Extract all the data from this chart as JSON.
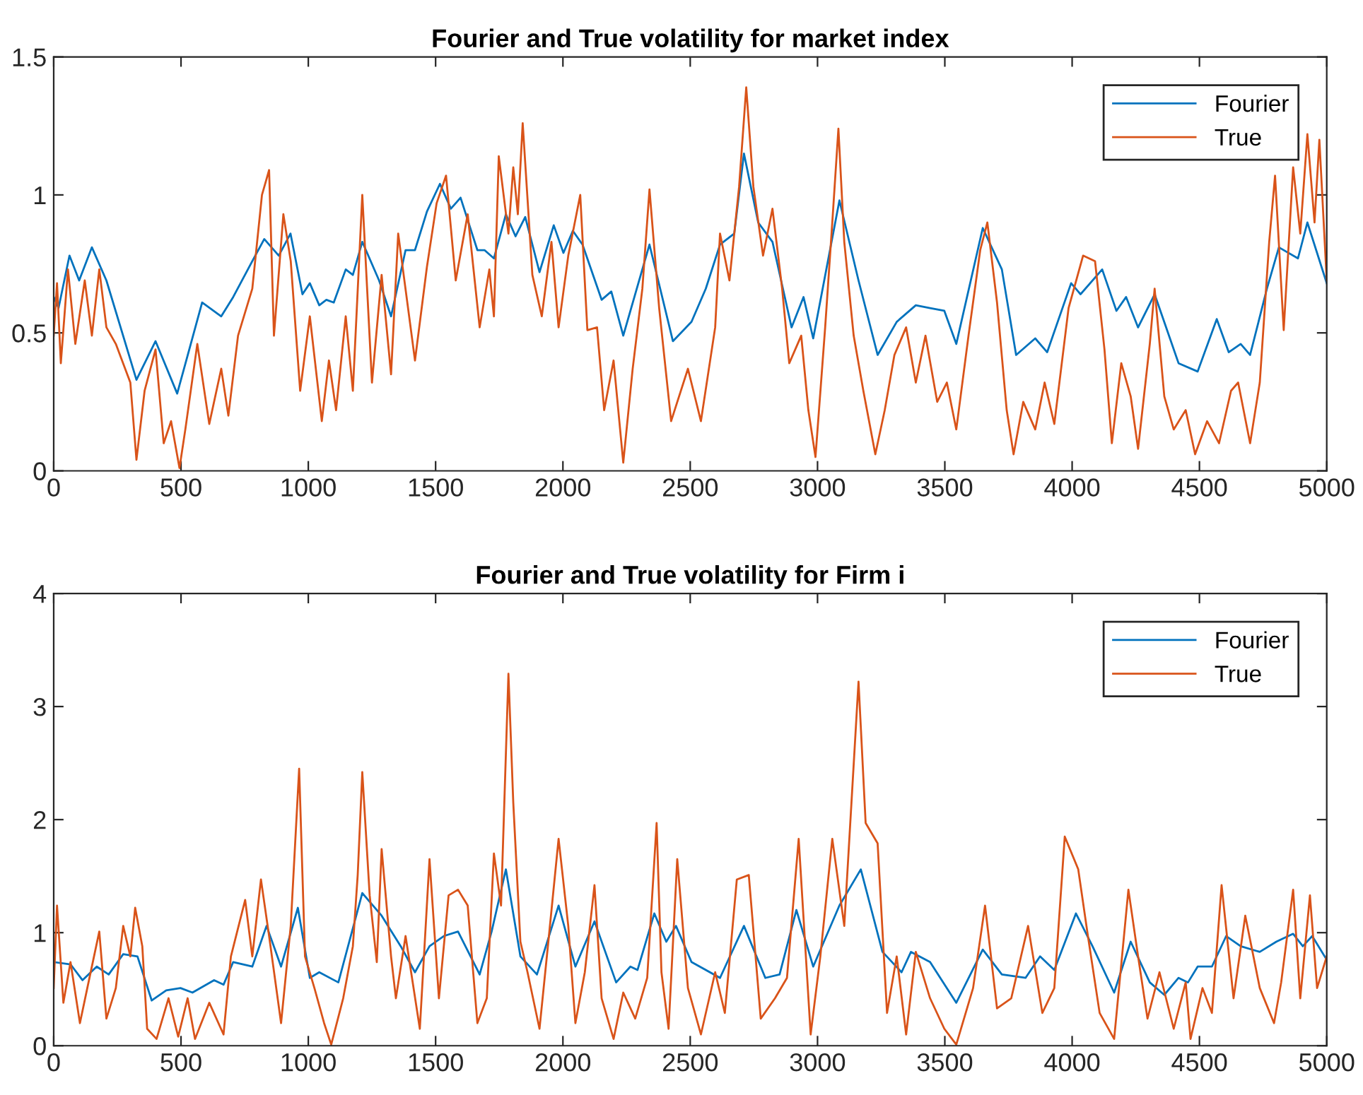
{
  "chart_data": [
    {
      "type": "line",
      "title": "Fourier and True volatility for market index",
      "xlim": [
        0,
        5000
      ],
      "xticks": [
        0,
        500,
        1000,
        1500,
        2000,
        2500,
        3000,
        3500,
        4000,
        4500,
        5000
      ],
      "ylim": [
        0,
        1.5
      ],
      "yticks": [
        0,
        0.5,
        1,
        1.5
      ],
      "grid": false,
      "legend": "top right",
      "line_style": "solid",
      "marker": "none",
      "series": [
        {
          "name": "Fourier",
          "color": "#0072bd",
          "x": [
            0,
            19,
            62,
            100,
            150,
            207,
            325,
            400,
            485,
            583,
            658,
            705,
            780,
            827,
            884,
            930,
            977,
            1006,
            1043,
            1071,
            1100,
            1147,
            1175,
            1212,
            1278,
            1325,
            1382,
            1419,
            1466,
            1517,
            1560,
            1598,
            1664,
            1692,
            1729,
            1776,
            1814,
            1852,
            1908,
            1964,
            2002,
            2039,
            2077,
            2152,
            2190,
            2237,
            2340,
            2432,
            2505,
            2561,
            2617,
            2673,
            2711,
            2767,
            2823,
            2898,
            2945,
            2983,
            3086,
            3161,
            3236,
            3311,
            3386,
            3442,
            3498,
            3545,
            3649,
            3724,
            3780,
            3855,
            3902,
            3996,
            4033,
            4118,
            4174,
            4212,
            4259,
            4324,
            4418,
            4493,
            4568,
            4615,
            4662,
            4699,
            4765,
            4812,
            4887,
            4924,
            5000
          ],
          "values": [
            0.63,
            0.59,
            0.78,
            0.69,
            0.81,
            0.69,
            0.33,
            0.47,
            0.28,
            0.61,
            0.56,
            0.63,
            0.76,
            0.84,
            0.78,
            0.86,
            0.64,
            0.68,
            0.6,
            0.62,
            0.61,
            0.73,
            0.71,
            0.83,
            0.69,
            0.56,
            0.8,
            0.8,
            0.94,
            1.04,
            0.95,
            0.99,
            0.8,
            0.8,
            0.77,
            0.93,
            0.85,
            0.92,
            0.72,
            0.89,
            0.79,
            0.87,
            0.82,
            0.62,
            0.65,
            0.49,
            0.82,
            0.47,
            0.54,
            0.66,
            0.82,
            0.86,
            1.15,
            0.9,
            0.83,
            0.52,
            0.63,
            0.48,
            0.98,
            0.69,
            0.42,
            0.54,
            0.6,
            0.59,
            0.58,
            0.46,
            0.88,
            0.73,
            0.42,
            0.48,
            0.43,
            0.68,
            0.64,
            0.73,
            0.58,
            0.63,
            0.52,
            0.64,
            0.39,
            0.36,
            0.55,
            0.43,
            0.46,
            0.42,
            0.66,
            0.81,
            0.77,
            0.9,
            0.68
          ]
        },
        {
          "name": "True",
          "color": "#d95319",
          "x": [
            0,
            13,
            28,
            56,
            85,
            122,
            150,
            179,
            207,
            244,
            301,
            325,
            357,
            400,
            432,
            461,
            494,
            517,
            564,
            611,
            658,
            686,
            724,
            780,
            818,
            846,
            865,
            902,
            931,
            968,
            1006,
            1053,
            1081,
            1109,
            1147,
            1175,
            1212,
            1250,
            1288,
            1325,
            1353,
            1419,
            1466,
            1504,
            1541,
            1579,
            1626,
            1673,
            1711,
            1729,
            1748,
            1786,
            1805,
            1823,
            1842,
            1880,
            1917,
            1955,
            1983,
            2021,
            2068,
            2096,
            2134,
            2162,
            2199,
            2237,
            2274,
            2312,
            2340,
            2378,
            2425,
            2491,
            2542,
            2598,
            2617,
            2654,
            2692,
            2720,
            2748,
            2786,
            2823,
            2861,
            2889,
            2936,
            2964,
            2992,
            3030,
            3058,
            3082,
            3105,
            3142,
            3180,
            3227,
            3264,
            3302,
            3348,
            3386,
            3424,
            3470,
            3508,
            3545,
            3593,
            3639,
            3667,
            3705,
            3743,
            3770,
            3808,
            3855,
            3892,
            3930,
            3986,
            4043,
            4090,
            4127,
            4156,
            4193,
            4230,
            4259,
            4305,
            4324,
            4362,
            4399,
            4446,
            4483,
            4530,
            4577,
            4624,
            4652,
            4699,
            4737,
            4774,
            4797,
            4831,
            4868,
            4896,
            4924,
            4952,
            4971,
            5000
          ],
          "values": [
            0.49,
            0.68,
            0.39,
            0.73,
            0.46,
            0.69,
            0.49,
            0.73,
            0.52,
            0.46,
            0.32,
            0.04,
            0.29,
            0.44,
            0.1,
            0.18,
            0.01,
            0.15,
            0.46,
            0.17,
            0.37,
            0.2,
            0.49,
            0.66,
            1.0,
            1.09,
            0.49,
            0.93,
            0.76,
            0.29,
            0.56,
            0.18,
            0.4,
            0.22,
            0.56,
            0.29,
            1.0,
            0.32,
            0.71,
            0.35,
            0.86,
            0.4,
            0.74,
            0.97,
            1.07,
            0.69,
            0.93,
            0.52,
            0.73,
            0.56,
            1.14,
            0.86,
            1.1,
            0.93,
            1.26,
            0.71,
            0.56,
            0.83,
            0.52,
            0.78,
            1.0,
            0.51,
            0.52,
            0.22,
            0.4,
            0.03,
            0.37,
            0.66,
            1.02,
            0.59,
            0.18,
            0.37,
            0.18,
            0.52,
            0.86,
            0.69,
            1.03,
            1.39,
            1.03,
            0.78,
            0.95,
            0.66,
            0.39,
            0.49,
            0.22,
            0.05,
            0.52,
            0.9,
            1.24,
            0.83,
            0.49,
            0.29,
            0.06,
            0.22,
            0.42,
            0.52,
            0.32,
            0.49,
            0.25,
            0.32,
            0.15,
            0.49,
            0.8,
            0.9,
            0.61,
            0.22,
            0.06,
            0.25,
            0.15,
            0.32,
            0.17,
            0.59,
            0.78,
            0.76,
            0.44,
            0.1,
            0.39,
            0.27,
            0.08,
            0.46,
            0.66,
            0.27,
            0.15,
            0.22,
            0.06,
            0.18,
            0.1,
            0.29,
            0.32,
            0.1,
            0.32,
            0.83,
            1.07,
            0.51,
            1.1,
            0.86,
            1.22,
            0.9,
            1.2,
            0.69
          ]
        }
      ]
    },
    {
      "type": "line",
      "title": "Fourier and True volatility for Firm i",
      "xlim": [
        0,
        5000
      ],
      "xticks": [
        0,
        500,
        1000,
        1500,
        2000,
        2500,
        3000,
        3500,
        4000,
        4500,
        5000
      ],
      "ylim": [
        0,
        4
      ],
      "yticks": [
        0,
        1,
        2,
        3,
        4
      ],
      "grid": false,
      "legend": "top right",
      "line_style": "solid",
      "marker": "none",
      "series": [
        {
          "name": "Fourier",
          "color": "#0072bd",
          "x": [
            0,
            66,
            113,
            169,
            216,
            273,
            329,
            385,
            442,
            498,
            545,
            630,
            667,
            705,
            780,
            836,
            893,
            959,
            1006,
            1043,
            1118,
            1212,
            1288,
            1363,
            1419,
            1476,
            1532,
            1588,
            1673,
            1720,
            1776,
            1833,
            1898,
            1983,
            2049,
            2124,
            2209,
            2265,
            2293,
            2359,
            2406,
            2444,
            2505,
            2617,
            2711,
            2795,
            2851,
            2917,
            2983,
            3086,
            3170,
            3255,
            3330,
            3367,
            3442,
            3545,
            3649,
            3724,
            3817,
            3874,
            3930,
            4015,
            4080,
            4165,
            4230,
            4305,
            4362,
            4418,
            4455,
            4493,
            4549,
            4605,
            4662,
            4737,
            4802,
            4868,
            4906,
            4943,
            5000
          ],
          "values": [
            0.74,
            0.72,
            0.58,
            0.7,
            0.63,
            0.81,
            0.79,
            0.4,
            0.49,
            0.51,
            0.47,
            0.58,
            0.54,
            0.74,
            0.7,
            1.06,
            0.7,
            1.22,
            0.6,
            0.65,
            0.56,
            1.35,
            1.15,
            0.88,
            0.65,
            0.88,
            0.97,
            1.01,
            0.63,
            1.01,
            1.56,
            0.79,
            0.63,
            1.24,
            0.7,
            1.1,
            0.56,
            0.7,
            0.67,
            1.17,
            0.92,
            1.06,
            0.74,
            0.6,
            1.06,
            0.6,
            0.63,
            1.2,
            0.7,
            1.24,
            1.56,
            0.83,
            0.65,
            0.83,
            0.74,
            0.38,
            0.85,
            0.63,
            0.6,
            0.79,
            0.67,
            1.17,
            0.88,
            0.47,
            0.92,
            0.56,
            0.45,
            0.6,
            0.56,
            0.7,
            0.7,
            0.97,
            0.88,
            0.83,
            0.92,
            0.99,
            0.88,
            0.97,
            0.76
          ]
        },
        {
          "name": "True",
          "color": "#d95319",
          "x": [
            0,
            13,
            38,
            66,
            103,
            132,
            179,
            207,
            244,
            273,
            301,
            320,
            348,
            367,
            404,
            451,
            489,
            526,
            555,
            611,
            667,
            696,
            752,
            780,
            814,
            846,
            893,
            931,
            964,
            987,
            1024,
            1062,
            1090,
            1137,
            1175,
            1194,
            1212,
            1241,
            1269,
            1288,
            1325,
            1344,
            1382,
            1438,
            1476,
            1513,
            1551,
            1588,
            1626,
            1664,
            1701,
            1729,
            1757,
            1786,
            1805,
            1833,
            1861,
            1908,
            1945,
            1983,
            2021,
            2049,
            2086,
            2124,
            2152,
            2199,
            2237,
            2284,
            2331,
            2368,
            2387,
            2415,
            2449,
            2491,
            2542,
            2598,
            2636,
            2683,
            2730,
            2777,
            2833,
            2880,
            2926,
            2973,
            3011,
            3058,
            3105,
            3161,
            3189,
            3236,
            3273,
            3311,
            3348,
            3386,
            3442,
            3498,
            3545,
            3611,
            3658,
            3705,
            3761,
            3827,
            3883,
            3930,
            3971,
            4024,
            4062,
            4108,
            4165,
            4221,
            4259,
            4296,
            4343,
            4399,
            4446,
            4465,
            4512,
            4549,
            4587,
            4634,
            4680,
            4737,
            4793,
            4821,
            4868,
            4896,
            4934,
            4962,
            5000
          ],
          "values": [
            0.51,
            1.24,
            0.38,
            0.74,
            0.2,
            0.51,
            1.01,
            0.24,
            0.51,
            1.06,
            0.79,
            1.22,
            0.88,
            0.15,
            0.06,
            0.42,
            0.08,
            0.42,
            0.06,
            0.38,
            0.1,
            0.79,
            1.29,
            0.79,
            1.47,
            0.97,
            0.2,
            1.06,
            2.45,
            0.79,
            0.51,
            0.2,
            0.01,
            0.42,
            0.88,
            1.51,
            2.42,
            1.33,
            0.74,
            1.74,
            0.79,
            0.42,
            0.97,
            0.15,
            1.65,
            0.42,
            1.33,
            1.38,
            1.24,
            0.2,
            0.42,
            1.7,
            1.24,
            3.29,
            2.15,
            0.92,
            0.65,
            0.15,
            0.97,
            1.83,
            1.06,
            0.2,
            0.65,
            1.42,
            0.42,
            0.06,
            0.47,
            0.24,
            0.6,
            1.97,
            0.65,
            0.15,
            1.65,
            0.51,
            0.1,
            0.65,
            0.29,
            1.47,
            1.51,
            0.24,
            0.42,
            0.6,
            1.83,
            0.1,
            0.79,
            1.83,
            1.06,
            3.22,
            1.97,
            1.79,
            0.29,
            0.79,
            0.1,
            0.83,
            0.42,
            0.15,
            0.01,
            0.51,
            1.24,
            0.33,
            0.42,
            1.06,
            0.29,
            0.51,
            1.85,
            1.56,
            0.97,
            0.29,
            0.06,
            1.38,
            0.79,
            0.24,
            0.65,
            0.15,
            0.56,
            0.06,
            0.51,
            0.29,
            1.42,
            0.42,
            1.15,
            0.51,
            0.2,
            0.56,
            1.38,
            0.42,
            1.33,
            0.51,
            0.79
          ]
        }
      ]
    }
  ]
}
